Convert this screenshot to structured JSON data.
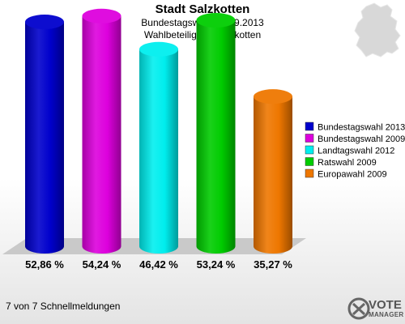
{
  "header": {
    "title": "Stadt Salzkotten",
    "subtitle_line1": "Bundestagswahl 22.09.2013",
    "subtitle_line2": "Wahlbeteiligung Salzkotten"
  },
  "footer": {
    "text": "7 von 7 Schnellmeldungen"
  },
  "logo": {
    "line1": "VOTE",
    "line2": "MANAGER"
  },
  "chart_data": {
    "type": "bar",
    "title": "Stadt Salzkotten",
    "subtitle": "Bundestagswahl 22.09.2013 — Wahlbeteiligung Salzkotten",
    "categories": [
      "Bundestagswahl 2013",
      "Bundestagswahl 2009",
      "Landtagswahl 2012",
      "Ratswahl 2009",
      "Europawahl 2009"
    ],
    "values": [
      52.86,
      54.24,
      46.42,
      53.24,
      35.27
    ],
    "value_labels": [
      "52,86 %",
      "54,24 %",
      "46,42 %",
      "53,24 %",
      "35,27 %"
    ],
    "colors": [
      "#0000cc",
      "#dd00dd",
      "#00eeee",
      "#00cc00",
      "#ee7700"
    ],
    "legend_position": "right",
    "grid": false,
    "ylim": [
      0,
      60
    ]
  }
}
